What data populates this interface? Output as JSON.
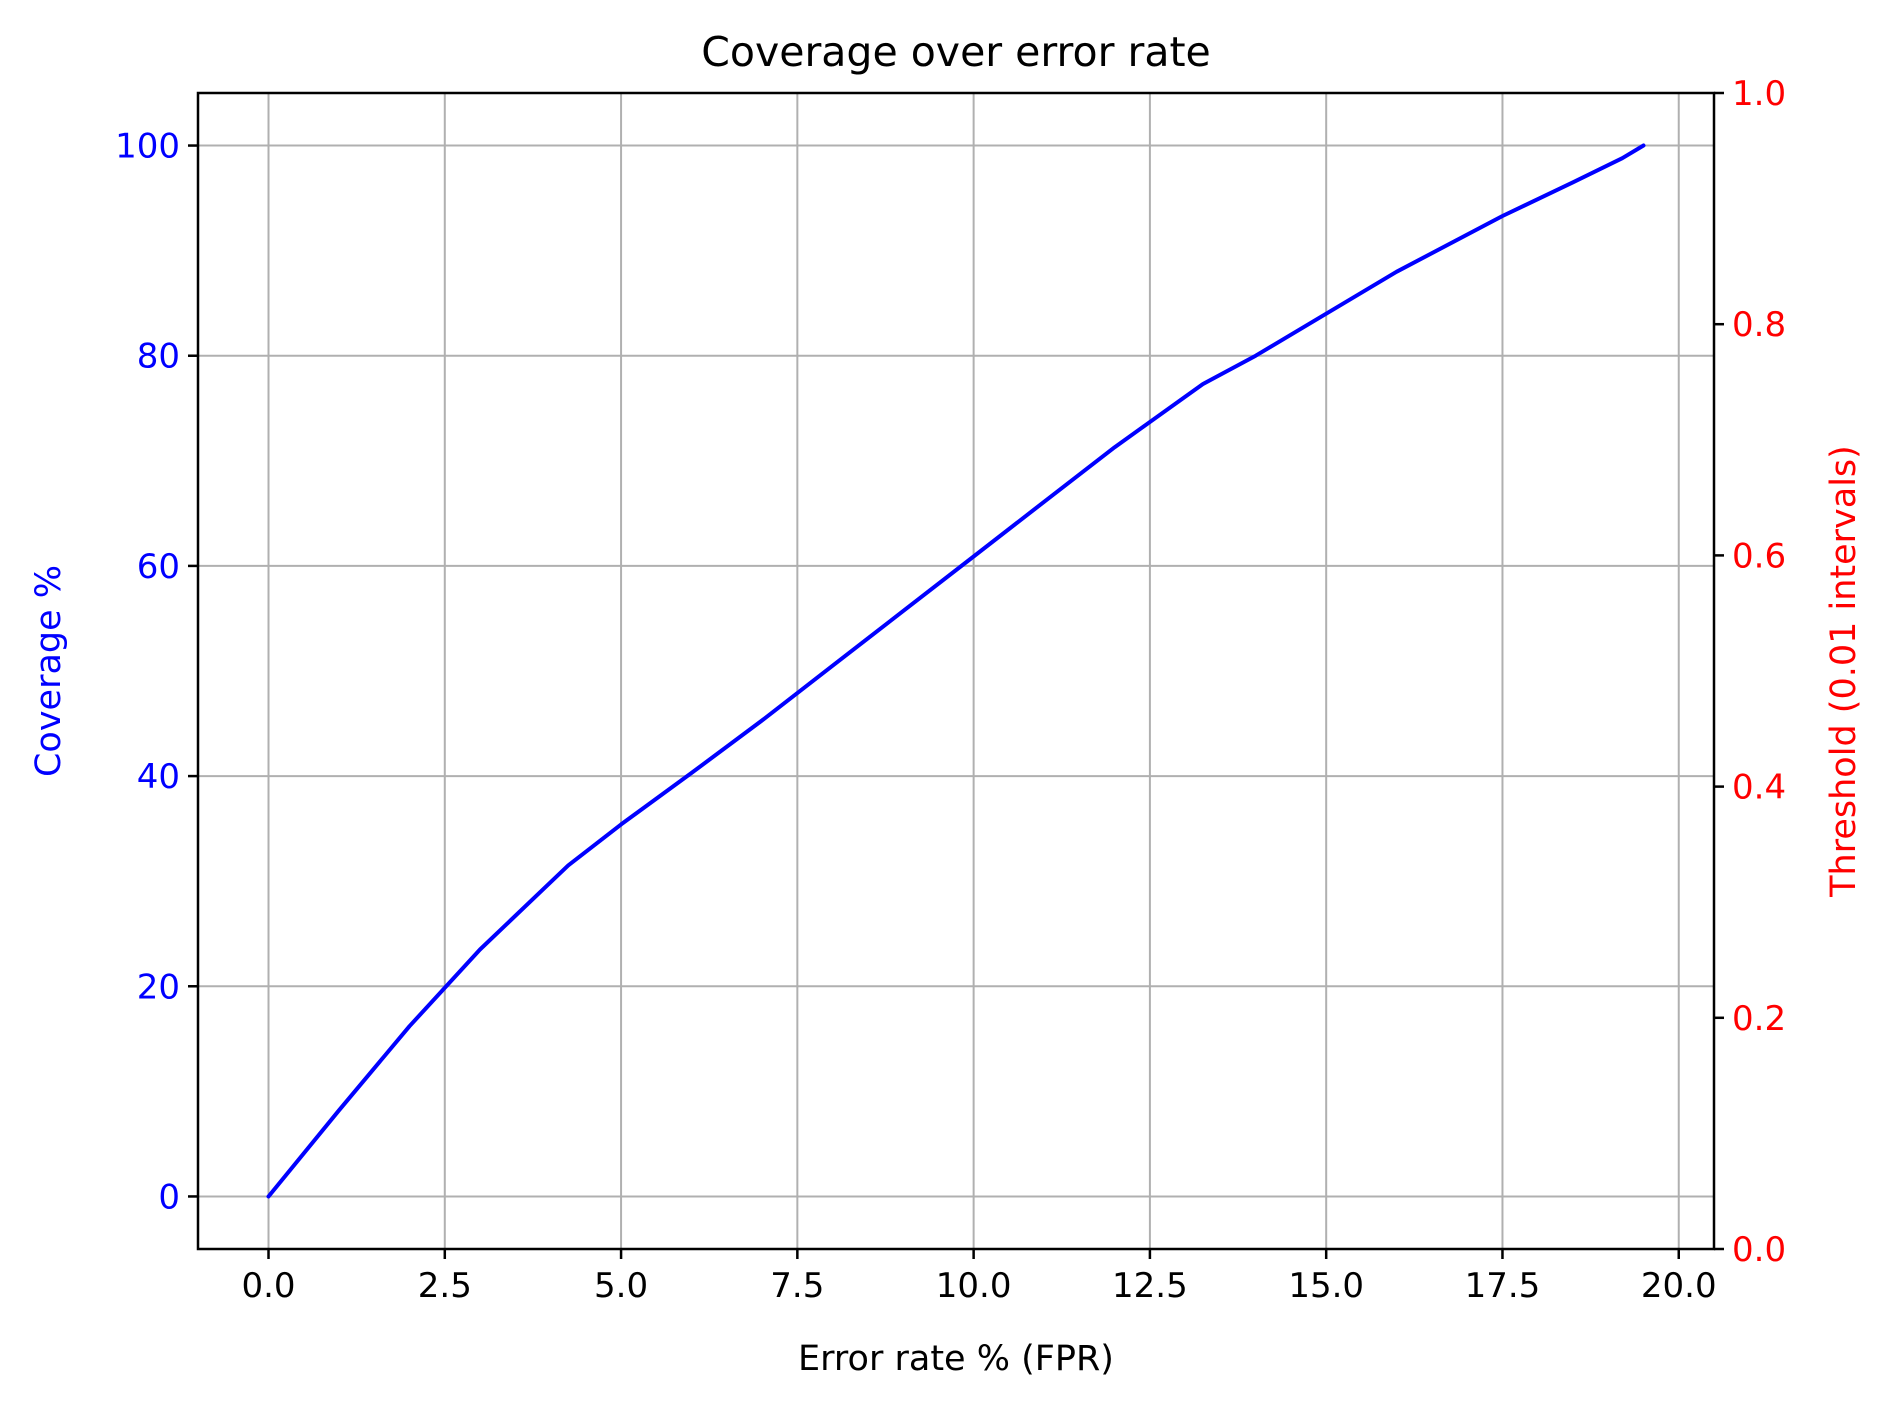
{
  "chart_data": {
    "type": "line",
    "title": "Coverage over error rate",
    "xlabel": "Error rate % (FPR)",
    "ylabel": "Coverage %",
    "y2label": "Threshold (0.01 intervals)",
    "xlim": [
      -1.0,
      20.5
    ],
    "ylim": [
      -5,
      105
    ],
    "y2lim": [
      0.0,
      1.0
    ],
    "xticks": [
      0.0,
      2.5,
      5.0,
      7.5,
      10.0,
      12.5,
      15.0,
      17.5,
      20.0
    ],
    "xtick_labels": [
      "0.0",
      "2.5",
      "5.0",
      "7.5",
      "10.0",
      "12.5",
      "15.0",
      "17.5",
      "20.0"
    ],
    "yticks": [
      0,
      20,
      40,
      60,
      80,
      100
    ],
    "ytick_labels": [
      "0",
      "20",
      "40",
      "60",
      "80",
      "100"
    ],
    "y2ticks": [
      0.0,
      0.2,
      0.4,
      0.6,
      0.8,
      1.0
    ],
    "y2tick_labels": [
      "0.0",
      "0.2",
      "0.4",
      "0.6",
      "0.8",
      "1.0"
    ],
    "grid": true,
    "colors": {
      "series": "#0000ff",
      "left_axis": "#0000ff",
      "right_axis": "#ff0000",
      "grid": "#b0b0b0"
    },
    "series": [
      {
        "x": [
          0.0,
          1.0,
          2.0,
          3.0,
          4.25,
          5.0,
          6.0,
          7.0,
          8.0,
          9.0,
          10.0,
          11.0,
          12.0,
          13.25,
          14.0,
          15.0,
          16.0,
          17.5,
          18.5,
          19.2,
          19.5
        ],
        "y": [
          0,
          8.2,
          16.2,
          23.5,
          31.5,
          35.4,
          40.3,
          45.3,
          50.5,
          55.7,
          60.9,
          66.1,
          71.3,
          77.3,
          80.0,
          84.0,
          88.0,
          93.3,
          96.5,
          98.8,
          100
        ]
      }
    ]
  }
}
